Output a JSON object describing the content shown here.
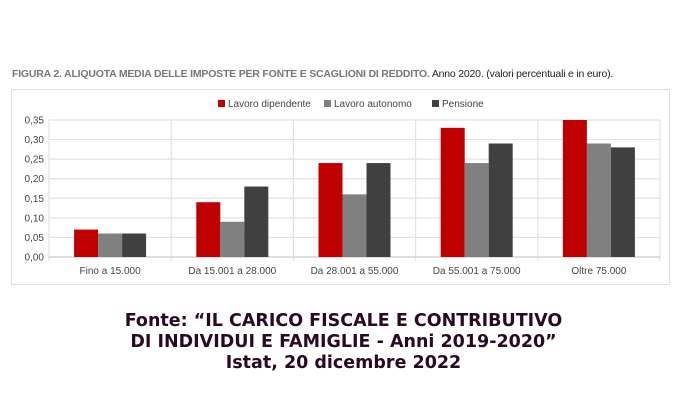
{
  "title": {
    "bold": "FIGURA 2. ALIQUOTA MEDIA DELLE IMPOSTE PER FONTE E SCAGLIONI DI REDDITO.",
    "normal": "Anno 2020. (valori percentuali e in euro)."
  },
  "chart_data": {
    "type": "bar",
    "categories": [
      "Fino a 15.000",
      "Da 15.001 a 28.000",
      "Da 28.001 a 55.000",
      "Da 55.001 a 75.000",
      "Oltre 75.000"
    ],
    "series": [
      {
        "name": "Lavoro dipendente",
        "color": "#c00000",
        "values": [
          0.07,
          0.14,
          0.24,
          0.33,
          0.35
        ]
      },
      {
        "name": "Lavoro autonomo",
        "color": "#808080",
        "values": [
          0.06,
          0.09,
          0.16,
          0.24,
          0.29
        ]
      },
      {
        "name": "Pensione",
        "color": "#404040",
        "values": [
          0.06,
          0.18,
          0.24,
          0.29,
          0.28
        ]
      }
    ],
    "ylim": [
      0,
      0.35
    ],
    "yticks": [
      "0,00",
      "0,05",
      "0,10",
      "0,15",
      "0,20",
      "0,25",
      "0,30",
      "0,35"
    ],
    "grid": true,
    "legend": "top"
  },
  "source": {
    "line1": "Fonte: “IL CARICO FISCALE E CONTRIBUTIVO",
    "line2": "DI INDIVIDUI E FAMIGLIE - Anni 2019-2020”",
    "line3": "Istat, 20 dicembre 2022"
  }
}
